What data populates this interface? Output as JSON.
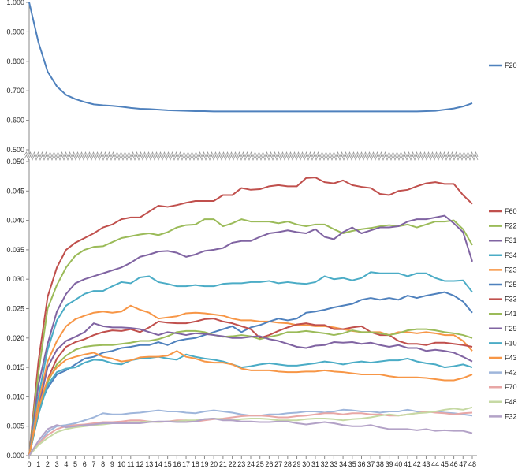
{
  "chart_data": [
    {
      "type": "line",
      "panel": "top",
      "ylim": [
        0.5,
        1.0
      ],
      "yticks": [
        "0.500",
        "0.600",
        "0.700",
        "0.800",
        "0.900",
        "1.000"
      ],
      "grid": false,
      "legend_position": "right",
      "series": [
        {
          "name": "F20",
          "color": "#4F81BD",
          "values": [
            1.0,
            0.865,
            0.765,
            0.715,
            0.686,
            0.672,
            0.662,
            0.654,
            0.651,
            0.649,
            0.646,
            0.642,
            0.639,
            0.638,
            0.636,
            0.634,
            0.633,
            0.632,
            0.631,
            0.631,
            0.63,
            0.63,
            0.63,
            0.63,
            0.63,
            0.63,
            0.63,
            0.63,
            0.63,
            0.63,
            0.63,
            0.63,
            0.63,
            0.63,
            0.63,
            0.63,
            0.63,
            0.63,
            0.63,
            0.63,
            0.63,
            0.63,
            0.63,
            0.631,
            0.632,
            0.636,
            0.64,
            0.647,
            0.658
          ]
        }
      ]
    },
    {
      "type": "line",
      "panel": "bottom",
      "ylim": [
        0.0,
        0.05
      ],
      "yticks": [
        "0.000",
        "0.005",
        "0.010",
        "0.015",
        "0.020",
        "0.025",
        "0.030",
        "0.035",
        "0.040",
        "0.045",
        "0.050"
      ],
      "categories": [
        "0",
        "1",
        "2",
        "3",
        "4",
        "5",
        "6",
        "7",
        "8",
        "9",
        "10",
        "11",
        "12",
        "13",
        "14",
        "15",
        "16",
        "17",
        "18",
        "19",
        "20",
        "21",
        "22",
        "23",
        "24",
        "25",
        "26",
        "27",
        "28",
        "29",
        "30",
        "31",
        "32",
        "33",
        "34",
        "35",
        "36",
        "37",
        "38",
        "39",
        "40",
        "41",
        "42",
        "43",
        "44",
        "45",
        "46",
        "47",
        "48"
      ],
      "grid": false,
      "legend_position": "right",
      "series": [
        {
          "name": "F60",
          "color": "#C0504D",
          "values": [
            0,
            0.016,
            0.027,
            0.032,
            0.035,
            0.0362,
            0.037,
            0.0378,
            0.0388,
            0.0393,
            0.0402,
            0.0405,
            0.0405,
            0.0415,
            0.0425,
            0.0423,
            0.0426,
            0.043,
            0.0433,
            0.0433,
            0.0433,
            0.0443,
            0.0443,
            0.0455,
            0.0452,
            0.0453,
            0.0458,
            0.046,
            0.0458,
            0.0458,
            0.0472,
            0.0473,
            0.0465,
            0.0463,
            0.0468,
            0.046,
            0.0457,
            0.0455,
            0.0445,
            0.0443,
            0.045,
            0.0452,
            0.0458,
            0.0463,
            0.0465,
            0.0462,
            0.0462,
            0.0443,
            0.0428
          ]
        },
        {
          "name": "F22",
          "color": "#9BBB59",
          "values": [
            0,
            0.014,
            0.025,
            0.029,
            0.032,
            0.034,
            0.035,
            0.0355,
            0.0356,
            0.0363,
            0.037,
            0.0373,
            0.0376,
            0.0378,
            0.0375,
            0.038,
            0.0388,
            0.0392,
            0.0393,
            0.0402,
            0.0402,
            0.039,
            0.0395,
            0.0402,
            0.0398,
            0.0398,
            0.0398,
            0.0395,
            0.0398,
            0.0393,
            0.039,
            0.0393,
            0.0393,
            0.0385,
            0.0378,
            0.0382,
            0.0385,
            0.0387,
            0.039,
            0.0392,
            0.039,
            0.0393,
            0.0388,
            0.0393,
            0.0398,
            0.0398,
            0.04,
            0.0385,
            0.0358
          ]
        },
        {
          "name": "F31",
          "color": "#8064A2",
          "values": [
            0,
            0.012,
            0.019,
            0.0245,
            0.0275,
            0.0293,
            0.03,
            0.0305,
            0.031,
            0.0315,
            0.032,
            0.0328,
            0.0338,
            0.0342,
            0.0347,
            0.0348,
            0.0345,
            0.0338,
            0.0342,
            0.0348,
            0.035,
            0.0353,
            0.0362,
            0.0365,
            0.0365,
            0.0372,
            0.0378,
            0.038,
            0.0383,
            0.038,
            0.0378,
            0.0385,
            0.0372,
            0.0368,
            0.038,
            0.0388,
            0.0378,
            0.0383,
            0.0388,
            0.0388,
            0.039,
            0.0398,
            0.0402,
            0.0402,
            0.0405,
            0.0408,
            0.0395,
            0.038,
            0.033
          ]
        },
        {
          "name": "F34",
          "color": "#4BACC6",
          "values": [
            0,
            0.01,
            0.018,
            0.023,
            0.0255,
            0.0265,
            0.0275,
            0.028,
            0.028,
            0.0288,
            0.0295,
            0.0293,
            0.0303,
            0.0305,
            0.0295,
            0.0292,
            0.0288,
            0.0288,
            0.029,
            0.0288,
            0.0288,
            0.0292,
            0.0293,
            0.0293,
            0.0295,
            0.0295,
            0.0297,
            0.0293,
            0.0295,
            0.0293,
            0.0292,
            0.0295,
            0.0305,
            0.03,
            0.0302,
            0.0298,
            0.0302,
            0.0312,
            0.031,
            0.031,
            0.031,
            0.0305,
            0.031,
            0.031,
            0.0302,
            0.0297,
            0.0297,
            0.0298,
            0.0278
          ]
        },
        {
          "name": "F23",
          "color": "#F79646",
          "values": [
            0,
            0.009,
            0.016,
            0.0195,
            0.022,
            0.0232,
            0.0238,
            0.0243,
            0.0245,
            0.0243,
            0.0245,
            0.0255,
            0.0248,
            0.0243,
            0.0233,
            0.0235,
            0.0237,
            0.0242,
            0.0243,
            0.0242,
            0.024,
            0.0238,
            0.0233,
            0.023,
            0.023,
            0.0228,
            0.0228,
            0.0226,
            0.0225,
            0.0222,
            0.0222,
            0.022,
            0.022,
            0.0218,
            0.0215,
            0.0212,
            0.021,
            0.021,
            0.021,
            0.0205,
            0.021,
            0.021,
            0.0208,
            0.021,
            0.0208,
            0.0205,
            0.0205,
            0.0195,
            0.0178
          ]
        },
        {
          "name": "F25",
          "color": "#4F81BD",
          "values": [
            0,
            0.008,
            0.0115,
            0.0138,
            0.0145,
            0.0155,
            0.0165,
            0.0168,
            0.0175,
            0.0178,
            0.0183,
            0.0185,
            0.0188,
            0.0188,
            0.0193,
            0.0188,
            0.0195,
            0.0198,
            0.02,
            0.0205,
            0.021,
            0.0215,
            0.022,
            0.021,
            0.0218,
            0.0222,
            0.0228,
            0.0233,
            0.023,
            0.0233,
            0.0243,
            0.0245,
            0.0248,
            0.0252,
            0.0255,
            0.0258,
            0.0265,
            0.0268,
            0.0265,
            0.0268,
            0.0265,
            0.0272,
            0.0268,
            0.0272,
            0.0275,
            0.0278,
            0.0272,
            0.0262,
            0.0243
          ]
        },
        {
          "name": "F33",
          "color": "#C0504D",
          "values": [
            0,
            0.007,
            0.013,
            0.0165,
            0.0185,
            0.0193,
            0.0198,
            0.0205,
            0.021,
            0.0213,
            0.0212,
            0.0215,
            0.021,
            0.0218,
            0.0228,
            0.0226,
            0.0225,
            0.0225,
            0.0228,
            0.0232,
            0.0233,
            0.0228,
            0.0225,
            0.022,
            0.0215,
            0.02,
            0.0205,
            0.0212,
            0.0218,
            0.0223,
            0.0225,
            0.0222,
            0.0222,
            0.0215,
            0.0215,
            0.0218,
            0.022,
            0.021,
            0.0205,
            0.0205,
            0.0195,
            0.019,
            0.019,
            0.0188,
            0.0192,
            0.0192,
            0.019,
            0.0188,
            0.0185
          ]
        },
        {
          "name": "F41",
          "color": "#9BBB59",
          "values": [
            0,
            0.007,
            0.0125,
            0.0155,
            0.017,
            0.018,
            0.0185,
            0.0187,
            0.0188,
            0.0188,
            0.019,
            0.0192,
            0.0195,
            0.0195,
            0.0198,
            0.0203,
            0.021,
            0.0212,
            0.0212,
            0.021,
            0.0205,
            0.0202,
            0.0203,
            0.0205,
            0.0203,
            0.0198,
            0.0202,
            0.0205,
            0.021,
            0.021,
            0.0212,
            0.021,
            0.0208,
            0.0205,
            0.0208,
            0.0213,
            0.021,
            0.021,
            0.0208,
            0.0205,
            0.0208,
            0.0213,
            0.0215,
            0.0215,
            0.0213,
            0.021,
            0.0208,
            0.0205,
            0.02
          ]
        },
        {
          "name": "F29",
          "color": "#8064A2",
          "values": [
            0,
            0.008,
            0.015,
            0.018,
            0.0195,
            0.0202,
            0.021,
            0.0225,
            0.022,
            0.0218,
            0.0218,
            0.0217,
            0.0215,
            0.021,
            0.0205,
            0.021,
            0.0208,
            0.0205,
            0.0208,
            0.0207,
            0.0205,
            0.0203,
            0.02,
            0.02,
            0.0202,
            0.0203,
            0.0198,
            0.0195,
            0.019,
            0.0185,
            0.0183,
            0.0187,
            0.0188,
            0.0193,
            0.0192,
            0.0193,
            0.019,
            0.0192,
            0.0188,
            0.0185,
            0.0188,
            0.0183,
            0.0183,
            0.0178,
            0.018,
            0.0178,
            0.0175,
            0.0168,
            0.016
          ]
        },
        {
          "name": "F10",
          "color": "#4BACC6",
          "values": [
            0,
            0.007,
            0.012,
            0.0142,
            0.0148,
            0.015,
            0.0158,
            0.0163,
            0.0162,
            0.0157,
            0.0155,
            0.0162,
            0.0165,
            0.0166,
            0.0168,
            0.0165,
            0.0163,
            0.0172,
            0.0168,
            0.0165,
            0.0163,
            0.016,
            0.0155,
            0.015,
            0.0152,
            0.0155,
            0.0157,
            0.0155,
            0.0153,
            0.0153,
            0.0155,
            0.0157,
            0.016,
            0.0158,
            0.0155,
            0.0158,
            0.016,
            0.0158,
            0.016,
            0.0162,
            0.0162,
            0.0165,
            0.016,
            0.0157,
            0.0155,
            0.015,
            0.0152,
            0.0155,
            0.015
          ]
        },
        {
          "name": "F43",
          "color": "#F79646",
          "values": [
            0,
            0.008,
            0.013,
            0.015,
            0.0163,
            0.0168,
            0.0172,
            0.0175,
            0.0168,
            0.0165,
            0.016,
            0.0162,
            0.0167,
            0.0168,
            0.0168,
            0.017,
            0.0178,
            0.0168,
            0.0165,
            0.016,
            0.0158,
            0.0158,
            0.0155,
            0.0148,
            0.0145,
            0.0145,
            0.0145,
            0.0143,
            0.0142,
            0.0142,
            0.0143,
            0.0143,
            0.0145,
            0.0143,
            0.0142,
            0.014,
            0.0138,
            0.0138,
            0.0138,
            0.0135,
            0.0133,
            0.0133,
            0.0133,
            0.0132,
            0.013,
            0.0128,
            0.0128,
            0.0132,
            0.0138
          ]
        },
        {
          "name": "F42",
          "color": "#9FB6DB",
          "values": [
            0,
            0.002,
            0.004,
            0.005,
            0.0052,
            0.0055,
            0.006,
            0.0065,
            0.0072,
            0.007,
            0.007,
            0.0072,
            0.0073,
            0.0075,
            0.0077,
            0.0075,
            0.0075,
            0.0073,
            0.0072,
            0.0075,
            0.0077,
            0.0075,
            0.0073,
            0.007,
            0.0068,
            0.0068,
            0.007,
            0.007,
            0.0072,
            0.0073,
            0.0075,
            0.0075,
            0.0073,
            0.0075,
            0.0078,
            0.0077,
            0.0075,
            0.0075,
            0.0073,
            0.0075,
            0.0075,
            0.0078,
            0.0075,
            0.0075,
            0.0075,
            0.0073,
            0.0072,
            0.007,
            0.0068
          ]
        },
        {
          "name": "F70",
          "color": "#E8A7A6",
          "values": [
            0,
            0.002,
            0.0035,
            0.0045,
            0.005,
            0.0052,
            0.0053,
            0.0055,
            0.0057,
            0.0057,
            0.0058,
            0.006,
            0.006,
            0.0058,
            0.0057,
            0.0058,
            0.006,
            0.006,
            0.0058,
            0.006,
            0.0062,
            0.0063,
            0.0065,
            0.0067,
            0.0068,
            0.0068,
            0.0067,
            0.0065,
            0.0065,
            0.0067,
            0.0068,
            0.007,
            0.0072,
            0.0072,
            0.007,
            0.0072,
            0.0072,
            0.007,
            0.007,
            0.0068,
            0.0068,
            0.007,
            0.0072,
            0.0075,
            0.0073,
            0.0072,
            0.007,
            0.0072,
            0.0073
          ]
        },
        {
          "name": "F48",
          "color": "#C6D9A4",
          "values": [
            0,
            0.0018,
            0.003,
            0.004,
            0.0045,
            0.0048,
            0.005,
            0.0052,
            0.0053,
            0.0055,
            0.0055,
            0.0057,
            0.0057,
            0.0058,
            0.0057,
            0.0058,
            0.0058,
            0.006,
            0.006,
            0.0062,
            0.0063,
            0.0062,
            0.006,
            0.0062,
            0.0063,
            0.0063,
            0.0062,
            0.006,
            0.006,
            0.006,
            0.0062,
            0.0063,
            0.0063,
            0.0062,
            0.006,
            0.0062,
            0.0063,
            0.0065,
            0.0068,
            0.007,
            0.0068,
            0.007,
            0.0072,
            0.0073,
            0.0075,
            0.0078,
            0.008,
            0.0078,
            0.0082
          ]
        },
        {
          "name": "F32",
          "color": "#B3A2C7",
          "values": [
            0,
            0.0025,
            0.0045,
            0.0052,
            0.0048,
            0.005,
            0.0052,
            0.0053,
            0.0055,
            0.0055,
            0.0055,
            0.0055,
            0.0055,
            0.0057,
            0.0058,
            0.0058,
            0.0057,
            0.0057,
            0.0058,
            0.0062,
            0.0063,
            0.006,
            0.006,
            0.0058,
            0.0058,
            0.0057,
            0.0057,
            0.0058,
            0.0058,
            0.0055,
            0.0053,
            0.0055,
            0.0057,
            0.0055,
            0.0052,
            0.005,
            0.005,
            0.0052,
            0.0048,
            0.0045,
            0.0045,
            0.0045,
            0.0043,
            0.0045,
            0.0042,
            0.0043,
            0.0042,
            0.0042,
            0.0038
          ]
        }
      ]
    }
  ]
}
